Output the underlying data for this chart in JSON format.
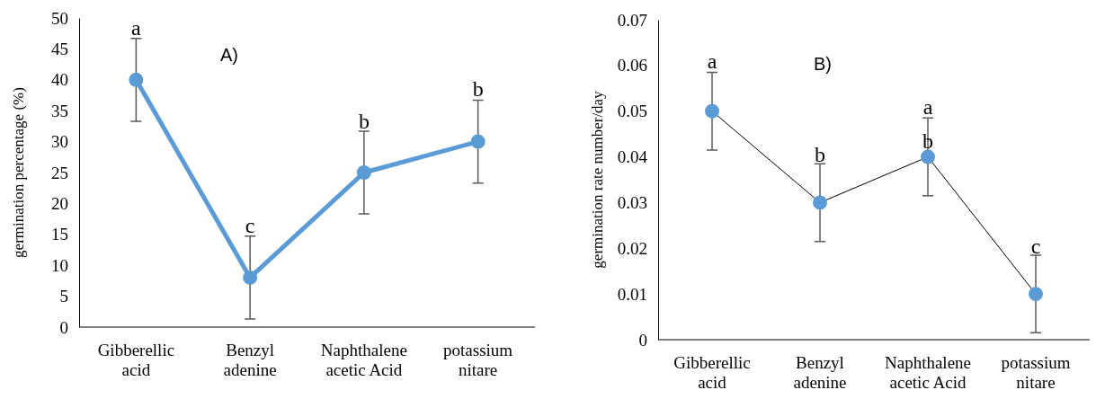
{
  "chart_data": [
    {
      "type": "line",
      "title": "A)",
      "ylabel": "germination percentage (%)",
      "categories": [
        "Gibberellic acid",
        "Benzyl adenine",
        "Naphthalene acetic Acid",
        "potassium nitare"
      ],
      "series": [
        {
          "color": "#5b9bd5",
          "values": [
            40,
            8,
            25,
            30
          ],
          "errors": [
            6.7,
            6.7,
            6.7,
            6.7
          ]
        }
      ],
      "ylim": [
        0,
        50
      ],
      "yticks": [
        0,
        5,
        10,
        15,
        20,
        25,
        30,
        35,
        40,
        45,
        50
      ],
      "marker": "circle",
      "line_style": "solid",
      "annotations": [
        {
          "text": "a",
          "x": "Gibberellic acid",
          "y": 47
        },
        {
          "text": "c",
          "x": "Benzyl adenine",
          "y": 15
        },
        {
          "text": "b",
          "x": "Naphthalene acetic Acid",
          "y": 31.8
        },
        {
          "text": "b",
          "x": "potassium nitare",
          "y": 37
        }
      ]
    },
    {
      "type": "line",
      "title": "B)",
      "ylabel": "germination rate number/day",
      "categories": [
        "Gibberellic acid",
        "Benzyl adenine",
        "Naphthalene acetic Acid",
        "potassium nitare"
      ],
      "series": [
        {
          "color": "#5b9bd5",
          "values": [
            0.05,
            0.03,
            0.04,
            0.01
          ],
          "errors": [
            0.0085,
            0.0085,
            0.0085,
            0.0085
          ]
        }
      ],
      "ylim": [
        0,
        0.07
      ],
      "yticks": [
        {
          "value": 0,
          "label": "0"
        },
        0.01,
        0.02,
        0.03,
        0.04,
        0.05,
        0.06,
        0.07
      ],
      "marker": "circle",
      "line_style": "solid",
      "annotations": [
        {
          "text": "a",
          "x": "Gibberellic acid",
          "y": 0.059
        },
        {
          "text": "b",
          "x": "Benzyl adenine",
          "y": 0.0385
        },
        {
          "text": "a",
          "x": "Naphthalene acetic Acid",
          "y": 0.049
        },
        {
          "text": "b",
          "x": "Naphthalene acetic Acid",
          "y": 0.0415
        },
        {
          "text": "c",
          "x": "potassium nitare",
          "y": 0.0185
        }
      ]
    }
  ]
}
